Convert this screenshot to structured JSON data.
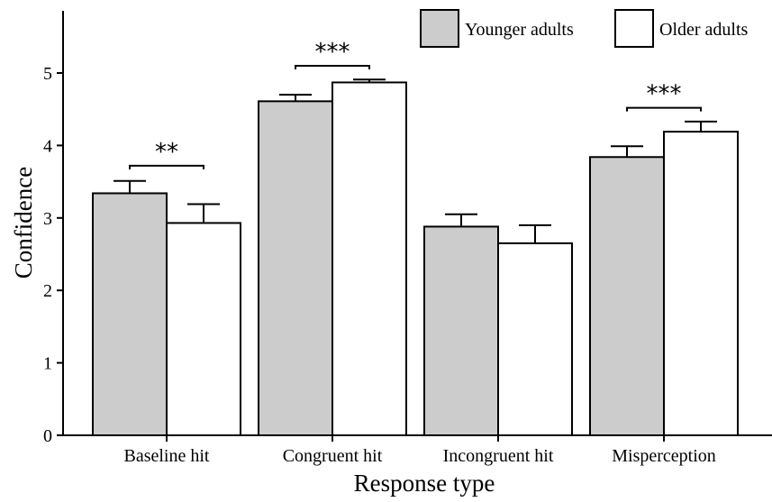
{
  "chart_data": {
    "type": "bar",
    "xlabel": "Response type",
    "ylabel": "Confidence",
    "ylim": [
      0,
      6
    ],
    "yticks": [
      0,
      1,
      2,
      3,
      4,
      5
    ],
    "categories": [
      "Baseline hit",
      "Congruent hit",
      "Incongruent hit",
      "Misperception"
    ],
    "series": [
      {
        "name": "Younger adults",
        "color": "#cccccc",
        "values": [
          3.34,
          4.61,
          2.88,
          3.84
        ],
        "errors": [
          0.17,
          0.09,
          0.17,
          0.15
        ]
      },
      {
        "name": "Older adults",
        "color": "#ffffff",
        "values": [
          2.93,
          4.87,
          2.65,
          4.19
        ],
        "errors": [
          0.26,
          0.04,
          0.25,
          0.14
        ]
      }
    ],
    "significance": [
      {
        "category": "Baseline hit",
        "label": "**",
        "level": 3.72
      },
      {
        "category": "Congruent hit",
        "label": "***",
        "level": 5.1
      },
      {
        "category": "Misperception",
        "label": "***",
        "level": 4.52
      }
    ],
    "legend": "top-right"
  }
}
